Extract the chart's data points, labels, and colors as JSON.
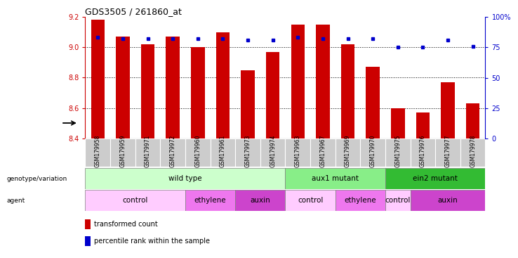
{
  "title": "GDS3505 / 261860_at",
  "samples": [
    "GSM179958",
    "GSM179959",
    "GSM179971",
    "GSM179972",
    "GSM179960",
    "GSM179961",
    "GSM179973",
    "GSM179974",
    "GSM179963",
    "GSM179967",
    "GSM179969",
    "GSM179970",
    "GSM179975",
    "GSM179976",
    "GSM179977",
    "GSM179978"
  ],
  "transformed_count": [
    9.18,
    9.07,
    9.02,
    9.07,
    9.0,
    9.1,
    8.85,
    8.97,
    9.15,
    9.15,
    9.02,
    8.87,
    8.6,
    8.57,
    8.77,
    8.63
  ],
  "percentile_rank": [
    83,
    82,
    82,
    82,
    82,
    82,
    81,
    81,
    83,
    82,
    82,
    82,
    75,
    75,
    81,
    76
  ],
  "ylim_left": [
    8.4,
    9.2
  ],
  "ylim_right": [
    0,
    100
  ],
  "yticks_left": [
    8.4,
    8.6,
    8.8,
    9.0,
    9.2
  ],
  "yticks_right": [
    0,
    25,
    50,
    75,
    100
  ],
  "bar_color": "#cc0000",
  "dot_color": "#0000cc",
  "genotype_groups": [
    {
      "label": "wild type",
      "start": 0,
      "end": 7,
      "color": "#ccffcc"
    },
    {
      "label": "aux1 mutant",
      "start": 8,
      "end": 11,
      "color": "#88ee88"
    },
    {
      "label": "ein2 mutant",
      "start": 12,
      "end": 15,
      "color": "#33bb33"
    }
  ],
  "agent_groups": [
    {
      "label": "control",
      "start": 0,
      "end": 3,
      "color": "#ffccff"
    },
    {
      "label": "ethylene",
      "start": 4,
      "end": 5,
      "color": "#ee77ee"
    },
    {
      "label": "auxin",
      "start": 6,
      "end": 7,
      "color": "#cc44cc"
    },
    {
      "label": "control",
      "start": 8,
      "end": 9,
      "color": "#ffccff"
    },
    {
      "label": "ethylene",
      "start": 10,
      "end": 11,
      "color": "#ee77ee"
    },
    {
      "label": "control",
      "start": 12,
      "end": 12,
      "color": "#ffccff"
    },
    {
      "label": "auxin",
      "start": 13,
      "end": 15,
      "color": "#cc44cc"
    }
  ],
  "bar_width": 0.55
}
